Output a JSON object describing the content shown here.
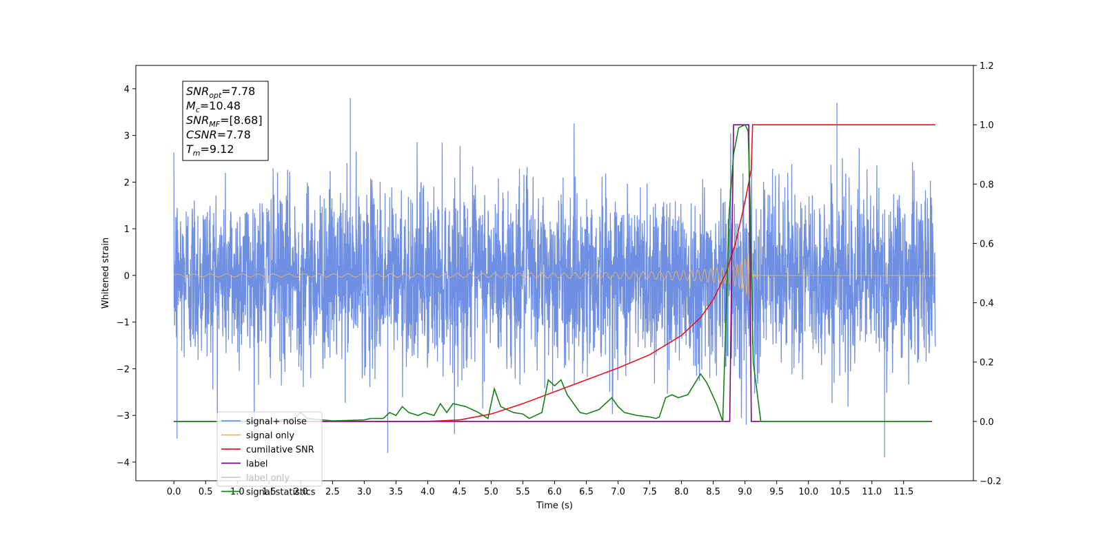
{
  "chart_data": {
    "type": "line",
    "xlabel": "Time (s)",
    "ylabel": "Whitened strain",
    "xlim": [
      -0.6,
      12.6
    ],
    "ylim": [
      -4.4,
      4.5
    ],
    "y2lim": [
      -0.2,
      1.2
    ],
    "x_ticks": [
      "0.0",
      "0.5",
      "1.0",
      "1.5",
      "2.0",
      "2.5",
      "3.0",
      "3.5",
      "4.0",
      "4.5",
      "5.0",
      "5.5",
      "6.0",
      "6.5",
      "7.0",
      "7.5",
      "8.0",
      "8.5",
      "9.0",
      "9.5",
      "10.0",
      "10.5",
      "11.0",
      "11.5"
    ],
    "y_ticks": [
      "4",
      "3",
      "2",
      "1",
      "0",
      "−1",
      "−2",
      "−3",
      "−4"
    ],
    "y2_ticks": [
      "1.2",
      "1.0",
      "0.8",
      "0.6",
      "0.4",
      "0.2",
      "0.0",
      "−0.2"
    ],
    "grid": false,
    "legend_position": "bottom-left",
    "annotation": [
      {
        "main": "SNR",
        "sub": "opt",
        "rest": "=7.78"
      },
      {
        "main": "M",
        "sub": "c",
        "rest": "=10.48"
      },
      {
        "main": "SNR",
        "sub": "MF",
        "rest": "=[8.68]"
      },
      {
        "main": "CSNR",
        "sub": "",
        "rest": "=7.78"
      },
      {
        "main": "T",
        "sub": "m",
        "rest": "=9.12"
      }
    ],
    "series": [
      {
        "name": "signal+ noise",
        "axis": "left",
        "color": "#6f8fe3",
        "kind": "noise",
        "x_range": [
          0,
          12
        ],
        "amplitude_envelope": 1.5,
        "peak_values": [
          3.8,
          -3.9
        ]
      },
      {
        "name": "signal only",
        "axis": "left",
        "color": "#f2b35a",
        "kind": "chirp",
        "x_range": [
          0,
          12
        ],
        "merger_time": 9.12,
        "max_amplitude": 0.65
      },
      {
        "name": "cumilative SNR",
        "axis": "right",
        "color": "#e8111a",
        "x": [
          0.0,
          4.0,
          4.5,
          5.0,
          5.5,
          6.0,
          6.5,
          7.0,
          7.5,
          8.0,
          8.3,
          8.5,
          8.7,
          8.85,
          9.0,
          9.1,
          9.12,
          12.0
        ],
        "y": [
          0.0,
          0.0,
          0.005,
          0.025,
          0.06,
          0.1,
          0.14,
          0.18,
          0.225,
          0.29,
          0.35,
          0.41,
          0.5,
          0.6,
          0.74,
          0.85,
          1.0,
          1.0
        ]
      },
      {
        "name": "label",
        "axis": "right",
        "color": "#800080",
        "x": [
          0.0,
          8.76,
          8.82,
          9.06,
          9.1,
          11.95
        ],
        "y": [
          0.0,
          0.0,
          1.0,
          1.0,
          0.0,
          0.0
        ]
      },
      {
        "name": "label only",
        "axis": "right",
        "color": "#cccccc",
        "legend_only": true
      },
      {
        "name": "signal statistics",
        "axis": "right",
        "color": "#128012",
        "x": [
          0.0,
          1.5,
          1.9,
          2.0,
          2.1,
          2.5,
          3.0,
          3.1,
          3.3,
          3.4,
          3.5,
          3.6,
          3.7,
          3.85,
          3.95,
          4.1,
          4.2,
          4.3,
          4.4,
          4.6,
          4.8,
          4.95,
          5.05,
          5.15,
          5.35,
          5.5,
          5.6,
          5.8,
          5.9,
          6.0,
          6.1,
          6.2,
          6.3,
          6.4,
          6.5,
          6.7,
          6.9,
          7.0,
          7.1,
          7.3,
          7.5,
          7.6,
          7.65,
          7.75,
          7.85,
          7.95,
          8.1,
          8.3,
          8.4,
          8.55,
          8.65,
          8.75,
          8.82,
          8.9,
          9.0,
          9.05,
          9.08,
          9.13,
          9.25,
          11.93
        ],
        "y": [
          0.0,
          0.0,
          0.01,
          0.03,
          0.01,
          0.002,
          0.005,
          0.01,
          0.01,
          0.03,
          0.02,
          0.05,
          0.03,
          0.02,
          0.03,
          0.02,
          0.06,
          0.03,
          0.06,
          0.05,
          0.03,
          0.01,
          0.11,
          0.05,
          0.03,
          0.025,
          0.01,
          0.03,
          0.14,
          0.12,
          0.14,
          0.09,
          0.06,
          0.03,
          0.025,
          0.04,
          0.08,
          0.05,
          0.03,
          0.02,
          0.015,
          0.01,
          0.015,
          0.08,
          0.09,
          0.08,
          0.09,
          0.16,
          0.13,
          0.06,
          0.0,
          0.7,
          0.9,
          0.99,
          1.0,
          0.98,
          0.75,
          0.2,
          0.0,
          0.0
        ]
      }
    ]
  }
}
